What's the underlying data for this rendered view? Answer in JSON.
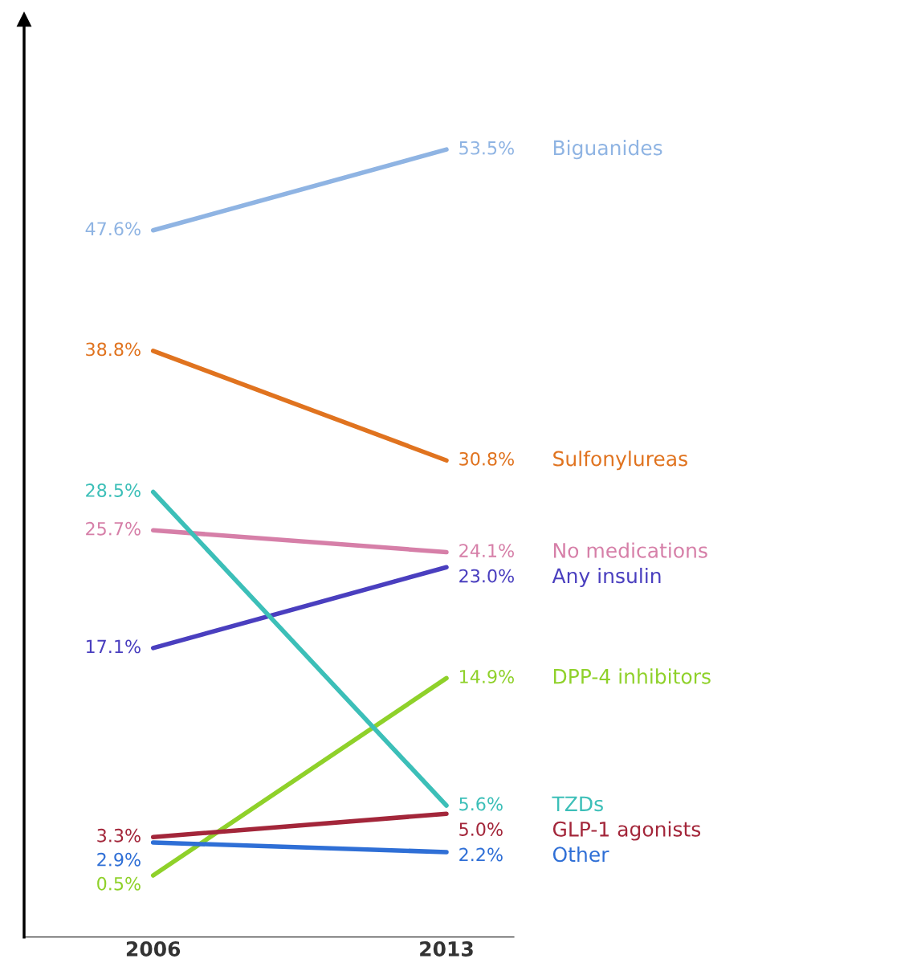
{
  "chart_data": {
    "type": "line",
    "categories": [
      "2006",
      "2013"
    ],
    "ylim": [
      -4,
      63
    ],
    "tick_labels": "x",
    "grid": false,
    "legend": false,
    "marker": "none",
    "line_style": "solid",
    "series": [
      {
        "name": "Biguanides",
        "color": "#8fb4e3",
        "values": [
          47.6,
          53.5
        ],
        "value_labels": [
          "47.6%",
          "53.5%"
        ]
      },
      {
        "name": "Sulfonylureas",
        "color": "#e0731f",
        "values": [
          38.8,
          30.8
        ],
        "value_labels": [
          "38.8%",
          "30.8%"
        ]
      },
      {
        "name": "No medications",
        "color": "#d67fa8",
        "values": [
          25.7,
          24.1
        ],
        "value_labels": [
          "25.7%",
          "24.1%"
        ]
      },
      {
        "name": "Any insulin",
        "color": "#4a3fbf",
        "values": [
          17.1,
          23.0
        ],
        "value_labels": [
          "17.1%",
          "23.0%"
        ]
      },
      {
        "name": "DPP-4 inhibitors",
        "color": "#8fd12a",
        "values": [
          0.5,
          14.9
        ],
        "value_labels": [
          "0.5%",
          "14.9%"
        ]
      },
      {
        "name": "TZDs",
        "color": "#3cbfb8",
        "values": [
          28.5,
          5.6
        ],
        "value_labels": [
          "28.5%",
          "5.6%"
        ]
      },
      {
        "name": "GLP-1 agonists",
        "color": "#a3263a",
        "values": [
          3.3,
          5.0
        ],
        "value_labels": [
          "3.3%",
          "5.0%"
        ]
      },
      {
        "name": "Other",
        "color": "#2f6fd6",
        "values": [
          2.9,
          2.2
        ],
        "value_labels": [
          "2.9%",
          "2.2%"
        ]
      }
    ]
  }
}
